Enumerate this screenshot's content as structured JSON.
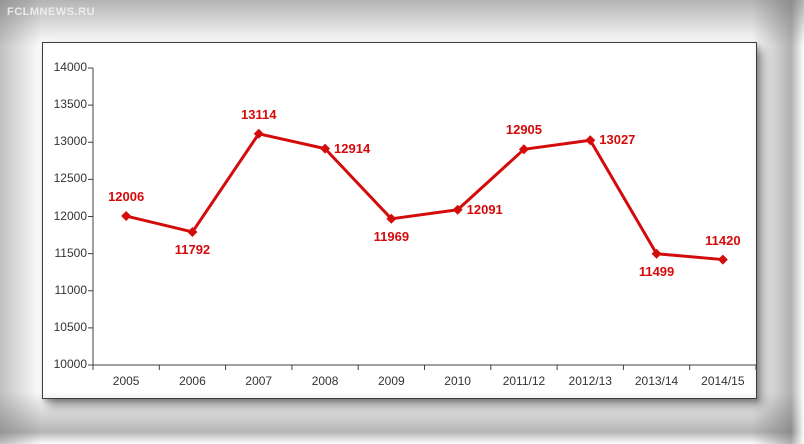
{
  "watermark": "FCLMNEWS.RU",
  "colors": {
    "series": "#d40b0b",
    "axis": "#404040",
    "tick_text": "#333333"
  },
  "chart_data": {
    "type": "line",
    "title": "",
    "xlabel": "",
    "ylabel": "",
    "categories": [
      "2005",
      "2006",
      "2007",
      "2008",
      "2009",
      "2010",
      "2011/12",
      "2012/13",
      "2013/14",
      "2014/15"
    ],
    "values": [
      12006,
      11792,
      13114,
      12914,
      11969,
      12091,
      12905,
      13027,
      11499,
      11420
    ],
    "point_labels": [
      "12006",
      "11792",
      "13114",
      "12914",
      "11969",
      "12091",
      "12905",
      "13027",
      "11499",
      "11420"
    ],
    "label_placement": [
      "above",
      "below",
      "above",
      "right",
      "below",
      "right",
      "above",
      "right",
      "below",
      "above"
    ],
    "ylim": [
      10000,
      14000
    ],
    "yticks": [
      10000,
      10500,
      11000,
      11500,
      12000,
      12500,
      13000,
      13500,
      14000
    ],
    "grid": false,
    "legend": "none",
    "marker": "diamond",
    "line_width": 3
  }
}
